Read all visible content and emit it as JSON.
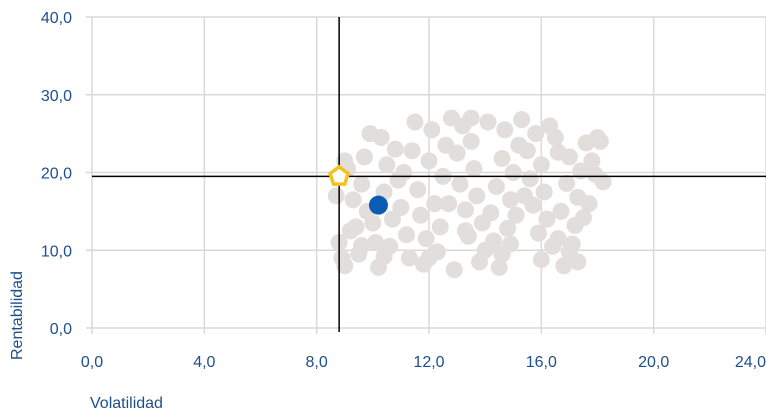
{
  "chart_data": {
    "type": "scatter",
    "xlabel": "Volatilidad",
    "ylabel": "Rentabilidad",
    "xlim": [
      0,
      24
    ],
    "ylim": [
      0,
      40
    ],
    "x_ticks": [
      "0,0",
      "4,0",
      "8,0",
      "12,0",
      "16,0",
      "20,0",
      "24,0"
    ],
    "y_ticks": [
      "0,0",
      "10,0",
      "20,0",
      "30,0",
      "40,0"
    ],
    "x_tick_values": [
      0,
      4,
      8,
      12,
      16,
      20,
      24
    ],
    "y_tick_values": [
      0,
      10,
      20,
      30,
      40
    ],
    "grid": true,
    "crosshair": {
      "x": 8.8,
      "y": 19.5
    },
    "colors": {
      "cloud": "#e2dedb",
      "highlight": "#0b5cb5",
      "pentagon": "#f3c21b",
      "grid": "#d9d9d9",
      "crosshair": "#000000",
      "text": "#1f4e8c"
    },
    "series": [
      {
        "values": [
          [
            9.0,
            8.0
          ],
          [
            9.5,
            9.5
          ],
          [
            8.8,
            11.0
          ],
          [
            9.2,
            12.5
          ],
          [
            10.0,
            13.5
          ],
          [
            9.8,
            15.0
          ],
          [
            9.3,
            16.5
          ],
          [
            9.6,
            18.5
          ],
          [
            9.1,
            20.5
          ],
          [
            9.7,
            22.0
          ],
          [
            10.3,
            24.5
          ],
          [
            10.8,
            23.0
          ],
          [
            10.5,
            21.0
          ],
          [
            10.9,
            19.0
          ],
          [
            10.4,
            17.5
          ],
          [
            11.0,
            15.5
          ],
          [
            10.7,
            14.0
          ],
          [
            11.2,
            12.0
          ],
          [
            10.6,
            10.5
          ],
          [
            11.3,
            9.0
          ],
          [
            10.2,
            7.8
          ],
          [
            11.8,
            8.2
          ],
          [
            12.3,
            9.8
          ],
          [
            11.9,
            11.5
          ],
          [
            12.4,
            13.0
          ],
          [
            11.7,
            14.5
          ],
          [
            12.2,
            16.0
          ],
          [
            11.6,
            17.8
          ],
          [
            12.5,
            19.5
          ],
          [
            12.0,
            21.5
          ],
          [
            12.6,
            23.5
          ],
          [
            12.1,
            25.5
          ],
          [
            12.8,
            27.0
          ],
          [
            13.2,
            26.0
          ],
          [
            13.5,
            24.0
          ],
          [
            13.0,
            22.5
          ],
          [
            13.6,
            20.5
          ],
          [
            13.1,
            18.5
          ],
          [
            13.7,
            17.0
          ],
          [
            13.3,
            15.2
          ],
          [
            13.9,
            13.5
          ],
          [
            13.4,
            11.8
          ],
          [
            14.0,
            10.0
          ],
          [
            13.8,
            8.5
          ],
          [
            14.5,
            7.8
          ],
          [
            14.6,
            9.5
          ],
          [
            14.3,
            11.2
          ],
          [
            14.8,
            12.8
          ],
          [
            14.2,
            14.8
          ],
          [
            14.9,
            16.5
          ],
          [
            14.4,
            18.2
          ],
          [
            15.0,
            20.0
          ],
          [
            14.6,
            21.8
          ],
          [
            15.2,
            23.5
          ],
          [
            14.7,
            25.5
          ],
          [
            15.3,
            26.8
          ],
          [
            15.8,
            25.0
          ],
          [
            15.5,
            22.8
          ],
          [
            16.0,
            21.0
          ],
          [
            15.6,
            19.2
          ],
          [
            16.1,
            17.5
          ],
          [
            15.7,
            15.8
          ],
          [
            16.2,
            14.0
          ],
          [
            15.9,
            12.2
          ],
          [
            16.4,
            10.5
          ],
          [
            16.0,
            8.8
          ],
          [
            16.8,
            8.0
          ],
          [
            17.0,
            9.8
          ],
          [
            16.6,
            11.5
          ],
          [
            17.2,
            13.2
          ],
          [
            16.7,
            15.0
          ],
          [
            17.3,
            16.8
          ],
          [
            16.9,
            18.6
          ],
          [
            17.4,
            20.2
          ],
          [
            17.0,
            22.0
          ],
          [
            17.6,
            23.8
          ],
          [
            18.0,
            24.5
          ],
          [
            17.8,
            21.5
          ],
          [
            18.2,
            18.8
          ],
          [
            17.7,
            16.0
          ],
          [
            17.5,
            14.2
          ],
          [
            18.1,
            24.0
          ],
          [
            17.3,
            8.5
          ],
          [
            17.1,
            10.8
          ],
          [
            8.9,
            9.0
          ],
          [
            9.4,
            13.0
          ],
          [
            8.7,
            17.0
          ],
          [
            9.0,
            21.5
          ],
          [
            9.9,
            25.0
          ],
          [
            10.1,
            11.0
          ],
          [
            11.5,
            26.5
          ],
          [
            12.9,
            7.5
          ],
          [
            13.5,
            27.0
          ],
          [
            14.1,
            26.5
          ],
          [
            16.3,
            26.0
          ],
          [
            16.5,
            24.5
          ],
          [
            11.1,
            20.0
          ],
          [
            12.7,
            16.0
          ],
          [
            13.3,
            12.5
          ],
          [
            15.1,
            14.5
          ],
          [
            15.4,
            17.0
          ],
          [
            14.9,
            10.8
          ],
          [
            12.0,
            9.0
          ],
          [
            10.4,
            9.2
          ],
          [
            9.6,
            10.6
          ],
          [
            11.4,
            22.8
          ],
          [
            16.6,
            22.6
          ],
          [
            17.9,
            19.8
          ]
        ]
      },
      {
        "values": [
          [
            10.2,
            15.8
          ]
        ]
      },
      {
        "values": [
          [
            8.8,
            19.5
          ]
        ]
      }
    ]
  }
}
